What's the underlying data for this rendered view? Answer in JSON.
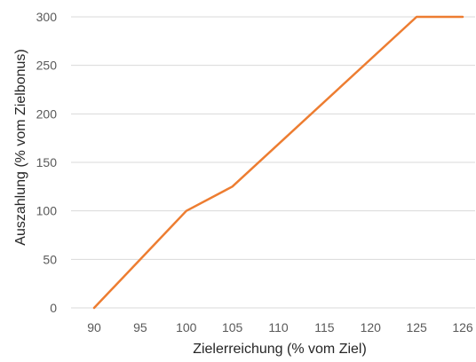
{
  "chart_data": {
    "type": "line",
    "xlabel": "Zielerreichung (% vom Ziel)",
    "ylabel": "Auszahlung (% vom Zielbonus)",
    "xlim": [
      90,
      126
    ],
    "ylim": [
      0,
      300
    ],
    "x_ticks": [
      90,
      95,
      100,
      105,
      110,
      115,
      120,
      125,
      126
    ],
    "y_ticks": [
      0,
      50,
      100,
      150,
      200,
      250,
      300
    ],
    "grid": true,
    "series": [
      {
        "color": "#ED7D31",
        "x": [
          90,
          100,
          105,
          125,
          126
        ],
        "y": [
          0,
          100,
          125,
          300,
          300
        ]
      }
    ]
  }
}
